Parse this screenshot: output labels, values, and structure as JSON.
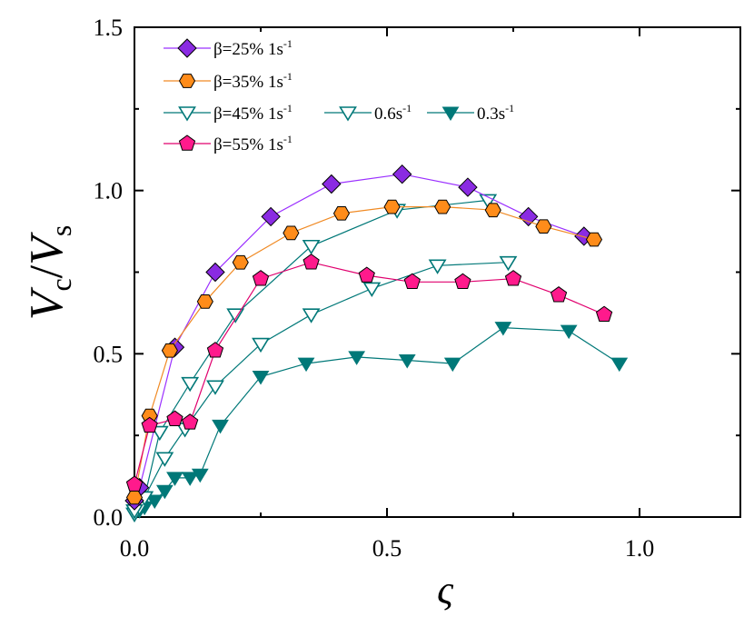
{
  "chart_data": {
    "type": "line",
    "title": "",
    "xlabel": "ς",
    "ylabel": {
      "base1": "V",
      "sub1": "c",
      "slash": "/",
      "base2": "V",
      "sub2": "s"
    },
    "xlim": [
      0,
      1.2
    ],
    "ylim": [
      0,
      1.5
    ],
    "xticks": [
      0,
      0.5,
      1.0
    ],
    "xtick_labels": [
      "0.0",
      "0.5",
      "1.0"
    ],
    "yticks": [
      0,
      0.5,
      1.0,
      1.5
    ],
    "ytick_labels": [
      "0.0",
      "0.5",
      "1.0",
      "1.5"
    ],
    "legend_position": "top-left",
    "series": [
      {
        "name": "β=25% 1s-1",
        "legend": {
          "main": "β=25% 1s",
          "sup": "-1"
        },
        "marker": "diamond",
        "fill": "#8a2be2",
        "line": "#9b30ff",
        "filled": true,
        "x": [
          0.0,
          0.01,
          0.08,
          0.16,
          0.27,
          0.39,
          0.53,
          0.66,
          0.78,
          0.89
        ],
        "y": [
          0.05,
          0.09,
          0.52,
          0.75,
          0.92,
          1.02,
          1.05,
          1.01,
          0.92,
          0.86
        ]
      },
      {
        "name": "β=35% 1s-1",
        "legend": {
          "main": "β=35% 1s",
          "sup": "-1"
        },
        "marker": "hexagon",
        "fill": "#ff8c1a",
        "line": "#f08a24",
        "filled": true,
        "x": [
          0.0,
          0.03,
          0.07,
          0.14,
          0.21,
          0.31,
          0.41,
          0.51,
          0.61,
          0.71,
          0.81,
          0.91
        ],
        "y": [
          0.06,
          0.31,
          0.51,
          0.66,
          0.78,
          0.87,
          0.93,
          0.95,
          0.95,
          0.94,
          0.89,
          0.85
        ]
      },
      {
        "name": "β=45% 1s-1",
        "legend": {
          "main": "β=45% 1s",
          "sup": "-1"
        },
        "marker": "triangle-down",
        "fill": "#ffffff",
        "line": "#007878",
        "filled": false,
        "x": [
          0.0,
          0.02,
          0.05,
          0.11,
          0.2,
          0.35,
          0.52,
          0.7
        ],
        "y": [
          0.02,
          0.06,
          0.26,
          0.41,
          0.62,
          0.83,
          0.94,
          0.97
        ]
      },
      {
        "name": "0.6s-1",
        "legend": {
          "main": "0.6s",
          "sup": "-1"
        },
        "marker": "triangle-down",
        "fill": "#ffffff",
        "line": "#007878",
        "filled": false,
        "x": [
          0.0,
          0.01,
          0.02,
          0.06,
          0.1,
          0.16,
          0.25,
          0.35,
          0.47,
          0.6,
          0.74
        ],
        "y": [
          0.01,
          0.03,
          0.06,
          0.18,
          0.27,
          0.4,
          0.53,
          0.62,
          0.7,
          0.77,
          0.78
        ]
      },
      {
        "name": "0.3s-1",
        "legend": {
          "main": "0.3s",
          "sup": "-1"
        },
        "marker": "triangle-down",
        "fill": "#007878",
        "line": "#007878",
        "filled": true,
        "x": [
          0.0,
          0.01,
          0.02,
          0.04,
          0.06,
          0.08,
          0.11,
          0.13,
          0.17,
          0.25,
          0.34,
          0.44,
          0.54,
          0.63,
          0.73,
          0.86,
          0.96
        ],
        "y": [
          0.01,
          0.02,
          0.03,
          0.05,
          0.08,
          0.12,
          0.12,
          0.13,
          0.28,
          0.43,
          0.47,
          0.49,
          0.48,
          0.47,
          0.58,
          0.57,
          0.47
        ]
      },
      {
        "name": "β=55% 1s-1",
        "legend": {
          "main": "β=55% 1s",
          "sup": "-1"
        },
        "marker": "pentagon",
        "fill": "#ff1a8c",
        "line": "#e0006e",
        "filled": true,
        "x": [
          0.0,
          0.03,
          0.08,
          0.11,
          0.16,
          0.25,
          0.35,
          0.46,
          0.55,
          0.65,
          0.75,
          0.84,
          0.93
        ],
        "y": [
          0.1,
          0.28,
          0.3,
          0.29,
          0.51,
          0.73,
          0.78,
          0.74,
          0.72,
          0.72,
          0.73,
          0.68,
          0.62
        ]
      }
    ]
  }
}
